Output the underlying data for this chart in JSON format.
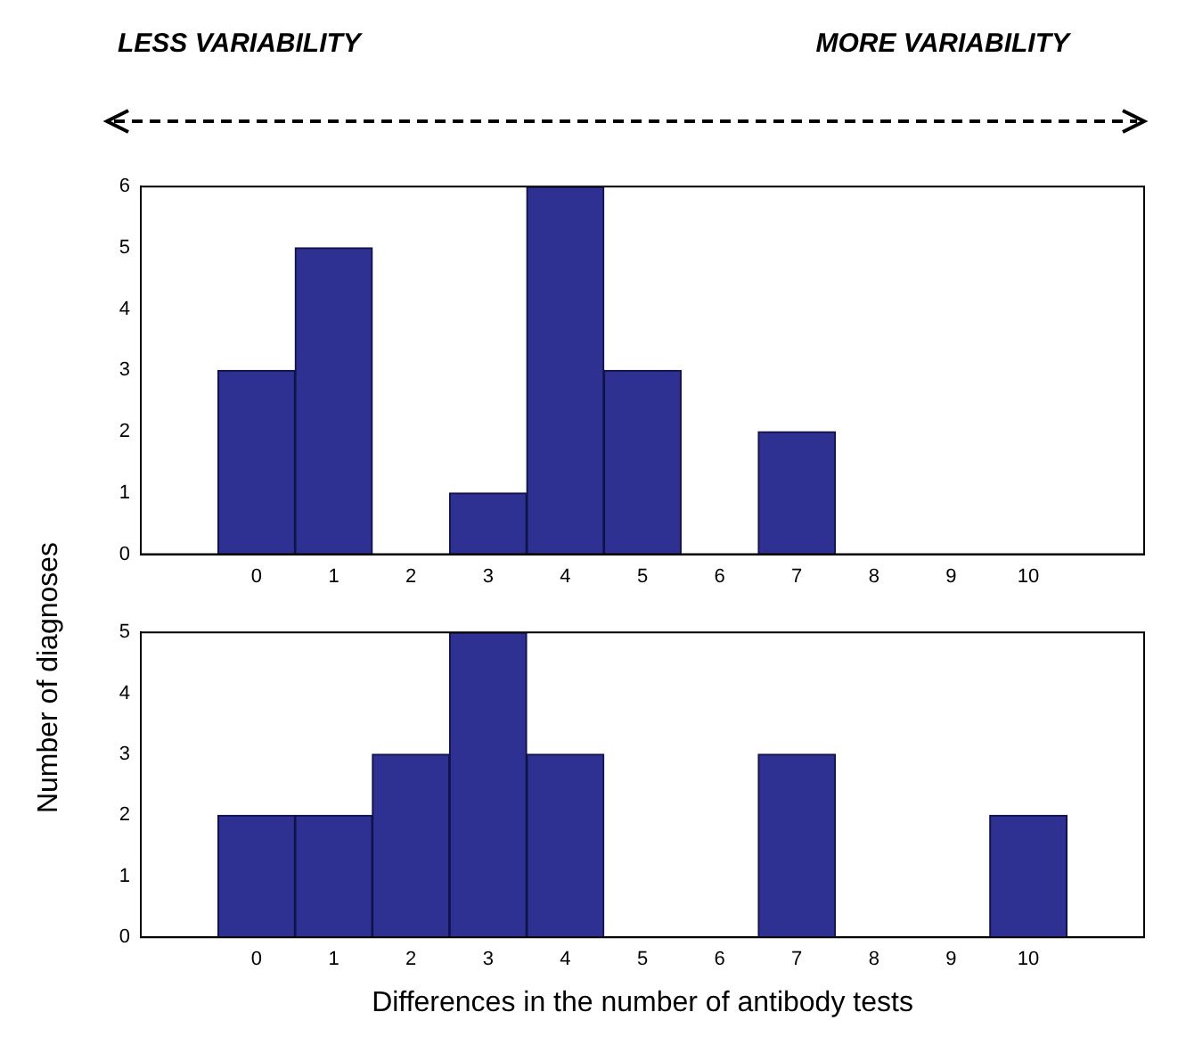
{
  "chart_data": [
    {
      "type": "bar",
      "annotations": [
        "LESS VARIABILITY",
        "MORE VARIABILITY"
      ],
      "ylabel": "Number of diagnoses",
      "x": [
        0,
        1,
        2,
        3,
        4,
        5,
        6,
        7,
        8,
        9,
        10
      ],
      "values": [
        3,
        5,
        0,
        1,
        6,
        3,
        0,
        2,
        0,
        0,
        0
      ],
      "color": "#2e3192",
      "xlim": [
        -1.5,
        11.5
      ],
      "xticks": [
        0,
        1,
        2,
        3,
        4,
        5,
        6,
        7,
        8,
        9,
        10
      ],
      "ylim": [
        0,
        6
      ],
      "yticks": [
        0,
        1,
        2,
        3,
        4,
        5,
        6
      ]
    },
    {
      "type": "bar",
      "xlabel": "Differences in the number of antibody tests",
      "x": [
        0,
        1,
        2,
        3,
        4,
        5,
        6,
        7,
        8,
        9,
        10
      ],
      "values": [
        2,
        2,
        3,
        5,
        3,
        0,
        0,
        3,
        0,
        0,
        2
      ],
      "color": "#2e3192",
      "xlim": [
        -1.5,
        11.5
      ],
      "xticks": [
        0,
        1,
        2,
        3,
        4,
        5,
        6,
        7,
        8,
        9,
        10
      ],
      "ylim": [
        0,
        5
      ],
      "yticks": [
        0,
        1,
        2,
        3,
        4,
        5
      ]
    }
  ]
}
